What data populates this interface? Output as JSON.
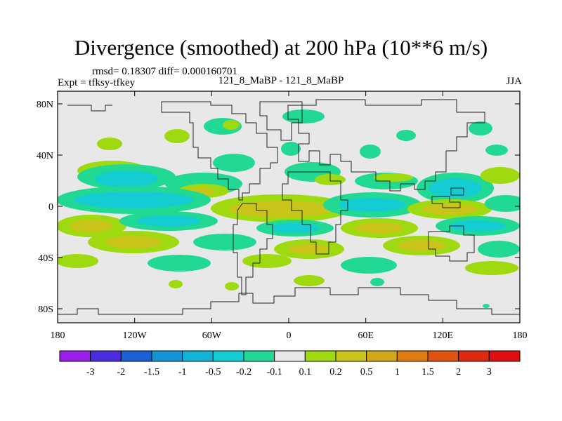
{
  "title": "Divergence (smoothed) at 200 hPa (10**6 m/s)",
  "stats": "rmsd= 0.18307 diff= 0.000160701",
  "experiment": "Expt = tfksy-tfkey",
  "comparison": "121_8_MaBP - 121_8_MaBP",
  "season": "JJA",
  "lat_labels": [
    "80N",
    "40N",
    "0",
    "40S",
    "80S"
  ],
  "lat_values": [
    80,
    40,
    0,
    -40,
    -80
  ],
  "lon_labels": [
    "180",
    "120W",
    "60W",
    "0",
    "60E",
    "120E",
    "180"
  ],
  "lon_values": [
    -180,
    -120,
    -60,
    0,
    60,
    120,
    180
  ],
  "colorbar": {
    "labels": [
      "-3",
      "-2",
      "-1.5",
      "-1",
      "-0.5",
      "-0.2",
      "-0.1",
      "0.1",
      "0.2",
      "0.5",
      "1",
      "1.5",
      "2",
      "3"
    ],
    "colors": [
      "#9b1fe8",
      "#4b2de0",
      "#1a5fd6",
      "#1493d6",
      "#14b4d6",
      "#14cdd2",
      "#22d994",
      "#e8e8e8",
      "#9fd90f",
      "#c8c419",
      "#d2a818",
      "#e07c0f",
      "#e0520f",
      "#e02a0f",
      "#e00f0f"
    ]
  },
  "fill_colors": {
    "background": "#e8e8e8",
    "neg_weak": "#22d994",
    "neg_mid": "#14cdd2",
    "pos_weak": "#9fd90f",
    "pos_mid": "#c8c419",
    "pos_strong": "#d2a818"
  }
}
